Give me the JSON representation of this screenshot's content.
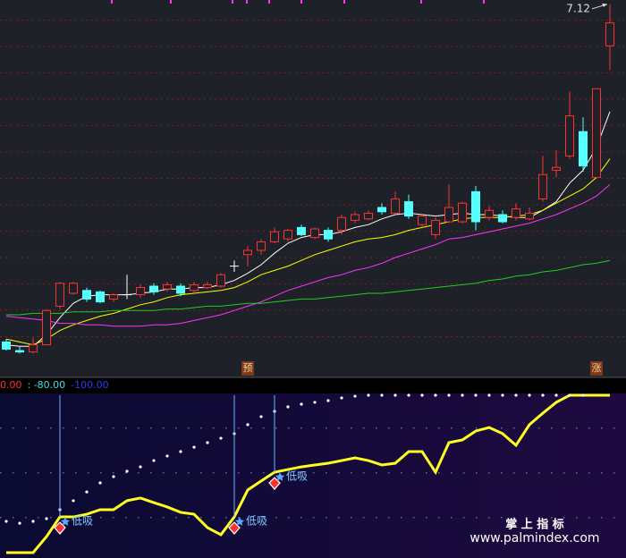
{
  "chart_data": [
    {
      "type": "candlestick",
      "open": [
        4.76,
        4.7,
        4.69,
        4.74,
        5.01,
        5.1,
        5.12,
        5.11,
        5.06,
        5.09,
        5.09,
        5.15,
        5.13,
        5.15,
        5.12,
        5.14,
        5.15,
        5.29,
        5.37,
        5.4,
        5.46,
        5.48,
        5.56,
        5.49,
        5.54,
        5.54,
        5.61,
        5.62,
        5.7,
        5.66,
        5.74,
        5.58,
        5.51,
        5.6,
        5.6,
        5.81,
        5.63,
        5.65,
        5.63,
        5.62,
        5.76,
        5.96,
        6.06,
        6.23,
        5.91,
        6.83
      ],
      "high": [
        4.78,
        4.73,
        4.79,
        4.99,
        5.18,
        5.18,
        5.14,
        5.12,
        5.1,
        5.23,
        5.16,
        5.17,
        5.18,
        5.17,
        5.18,
        5.18,
        5.24,
        5.33,
        5.43,
        5.48,
        5.56,
        5.55,
        5.58,
        5.56,
        5.56,
        5.65,
        5.67,
        5.68,
        5.73,
        5.81,
        5.79,
        5.65,
        5.63,
        5.86,
        5.74,
        5.85,
        5.71,
        5.68,
        5.73,
        5.7,
        6.06,
        6.1,
        6.51,
        6.33,
        6.53,
        7.12
      ],
      "low": [
        4.7,
        4.68,
        4.68,
        4.74,
        4.99,
        5.09,
        5.04,
        5.03,
        5.04,
        5.06,
        5.07,
        5.09,
        5.11,
        5.08,
        5.1,
        5.13,
        5.14,
        5.25,
        5.29,
        5.37,
        5.45,
        5.46,
        5.5,
        5.48,
        5.46,
        5.51,
        5.59,
        5.61,
        5.65,
        5.65,
        5.62,
        5.56,
        5.48,
        5.59,
        5.59,
        5.54,
        5.61,
        5.59,
        5.61,
        5.61,
        5.74,
        5.91,
        6.04,
        5.95,
        5.91,
        6.66
      ],
      "close": [
        4.71,
        4.69,
        4.74,
        4.98,
        5.17,
        5.17,
        5.06,
        5.04,
        5.09,
        5.09,
        5.14,
        5.11,
        5.16,
        5.1,
        5.16,
        5.16,
        5.23,
        5.29,
        5.4,
        5.46,
        5.53,
        5.54,
        5.51,
        5.55,
        5.48,
        5.63,
        5.65,
        5.66,
        5.67,
        5.76,
        5.64,
        5.64,
        5.61,
        5.7,
        5.73,
        5.6,
        5.68,
        5.6,
        5.69,
        5.66,
        5.93,
        5.98,
        6.34,
        5.99,
        6.53,
        6.99
      ],
      "up_color": "#ff3232",
      "down_color": "#54ffff",
      "flat_color": "#ffffff",
      "ylim": [
        4.65,
        7.15
      ],
      "series": [
        {
          "color": "#ffffff",
          "values": [
            4.74,
            4.73,
            4.73,
            4.81,
            4.93,
            5.03,
            5.08,
            5.09,
            5.09,
            5.09,
            5.1,
            5.11,
            5.13,
            5.13,
            5.14,
            5.14,
            5.16,
            5.19,
            5.24,
            5.3,
            5.38,
            5.45,
            5.49,
            5.51,
            5.51,
            5.53,
            5.56,
            5.58,
            5.62,
            5.65,
            5.66,
            5.65,
            5.64,
            5.65,
            5.66,
            5.65,
            5.65,
            5.64,
            5.63,
            5.63,
            5.68,
            5.74,
            5.87,
            5.96,
            6.12,
            6.37
          ]
        },
        {
          "color": "#ffff00",
          "values": [
            4.78,
            4.76,
            4.74,
            4.78,
            4.84,
            4.88,
            4.91,
            4.94,
            4.96,
            4.99,
            5.02,
            5.04,
            5.07,
            5.09,
            5.1,
            5.11,
            5.12,
            5.14,
            5.18,
            5.23,
            5.26,
            5.29,
            5.33,
            5.37,
            5.4,
            5.43,
            5.46,
            5.48,
            5.49,
            5.51,
            5.54,
            5.56,
            5.58,
            5.6,
            5.62,
            5.63,
            5.63,
            5.63,
            5.64,
            5.65,
            5.68,
            5.73,
            5.78,
            5.83,
            5.91,
            6.04
          ]
        },
        {
          "color": "#ff33ff",
          "values": [
            4.94,
            4.93,
            4.92,
            4.91,
            4.89,
            4.89,
            4.88,
            4.88,
            4.87,
            4.87,
            4.87,
            4.88,
            4.88,
            4.89,
            4.91,
            4.93,
            4.95,
            4.98,
            5.01,
            5.04,
            5.08,
            5.12,
            5.15,
            5.18,
            5.21,
            5.23,
            5.26,
            5.28,
            5.31,
            5.35,
            5.38,
            5.41,
            5.44,
            5.48,
            5.49,
            5.51,
            5.53,
            5.55,
            5.57,
            5.59,
            5.62,
            5.65,
            5.69,
            5.73,
            5.78,
            5.86
          ]
        },
        {
          "color": "#22cc22",
          "values": [
            4.95,
            4.95,
            4.96,
            4.96,
            4.96,
            4.97,
            4.97,
            4.97,
            4.98,
            4.98,
            4.98,
            4.98,
            4.99,
            4.99,
            5.0,
            5.01,
            5.01,
            5.02,
            5.03,
            5.03,
            5.04,
            5.05,
            5.06,
            5.06,
            5.07,
            5.08,
            5.09,
            5.1,
            5.1,
            5.11,
            5.12,
            5.13,
            5.14,
            5.15,
            5.16,
            5.17,
            5.19,
            5.2,
            5.22,
            5.23,
            5.25,
            5.26,
            5.28,
            5.3,
            5.31,
            5.33
          ]
        }
      ],
      "markers": [
        {
          "text": "预",
          "index": 18
        },
        {
          "text": "涨",
          "index": 44
        }
      ]
    },
    {
      "type": "line",
      "header": [
        "0.00",
        ": -80.00",
        "-100.00"
      ],
      "header_colors": [
        "#ff3030",
        "#40e0e0",
        "#2a3cff"
      ],
      "ylim": [
        -100,
        0
      ],
      "series": [
        {
          "color": "#ffff22",
          "style": "line",
          "values": [
            -100,
            -100,
            -100,
            -89.8,
            -77.3,
            -77.3,
            -75.6,
            -72.7,
            -72.7,
            -67.0,
            -65.3,
            -68.2,
            -71.0,
            -74.4,
            -75.6,
            -84.1,
            -88.6,
            -77.3,
            -60.2,
            -54.5,
            -48.9,
            -47.2,
            -45.5,
            -44.3,
            -43.2,
            -41.5,
            -39.8,
            -41.5,
            -44.3,
            -43.2,
            -35.8,
            -35.8,
            -48.9,
            -30.1,
            -28.4,
            -22.7,
            -20.5,
            -24.4,
            -31.8,
            -18.7,
            -11.4,
            -4.5,
            0,
            0,
            0,
            0
          ]
        },
        {
          "color": "#ffffff",
          "style": "dots",
          "values": [
            -80.1,
            -81.3,
            -80.1,
            -78.4,
            -72.7,
            -67.0,
            -61.4,
            -55.7,
            -51.7,
            -48.3,
            -45.5,
            -41.5,
            -38.6,
            -35.8,
            -33.0,
            -30.1,
            -27.3,
            -24.4,
            -18.7,
            -13.6,
            -10.2,
            -7.4,
            -5.7,
            -4.5,
            -3.4,
            -1.7,
            -0.6,
            0,
            0,
            0,
            0,
            0,
            0,
            0,
            0,
            0,
            0,
            0,
            0,
            0,
            0,
            0,
            0,
            0,
            null,
            null
          ]
        }
      ],
      "signals": [
        {
          "text": "低吸",
          "index": 4
        },
        {
          "text": "低吸",
          "index": 17
        },
        {
          "text": "低吸",
          "index": 20
        }
      ]
    }
  ],
  "watermark": {
    "title": "掌 上 指 标",
    "url": "www.palmindex.com"
  }
}
